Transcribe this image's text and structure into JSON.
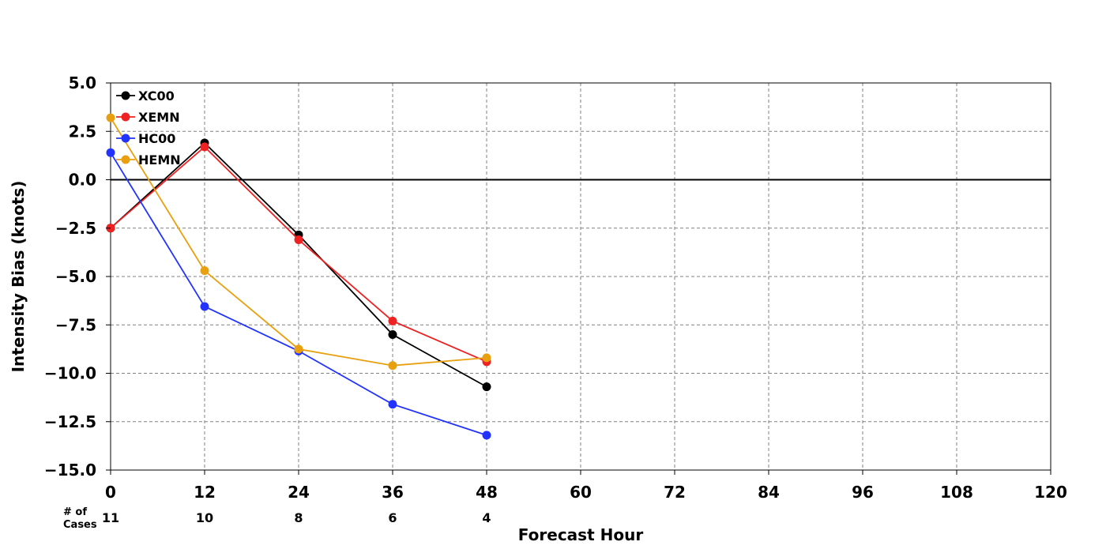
{
  "chart_data": {
    "type": "line",
    "xlabel": "Forecast Hour",
    "ylabel": "Intensity Bias (knots)",
    "xlim": [
      0,
      120
    ],
    "ylim": [
      -15,
      5
    ],
    "x_ticks": [
      "0",
      "12",
      "24",
      "36",
      "48",
      "60",
      "72",
      "84",
      "96",
      "108",
      "120"
    ],
    "y_ticks": [
      "5.0",
      "2.5",
      "0.0",
      "−2.5",
      "−5.0",
      "−7.5",
      "−10.0",
      "−12.5",
      "−15.0"
    ],
    "grid": true,
    "legend_position": "top-left",
    "zero_line": true,
    "cases_header": [
      "# of",
      "Cases"
    ],
    "cases": [
      {
        "x": 0,
        "count": "11"
      },
      {
        "x": 12,
        "count": "10"
      },
      {
        "x": 24,
        "count": "8"
      },
      {
        "x": 36,
        "count": "6"
      },
      {
        "x": 48,
        "count": "4"
      }
    ],
    "x": [
      0,
      12,
      24,
      36,
      48
    ],
    "series": [
      {
        "name": "XC00",
        "color": "#000000",
        "values": [
          -2.5,
          1.9,
          -2.85,
          -8.0,
          -10.7
        ]
      },
      {
        "name": "XEMN",
        "color": "#ee2222",
        "values": [
          -2.5,
          1.7,
          -3.1,
          -7.3,
          -9.4
        ]
      },
      {
        "name": "HC00",
        "color": "#2233ff",
        "values": [
          1.4,
          -6.55,
          -8.85,
          -11.6,
          -13.2
        ]
      },
      {
        "name": "HEMN",
        "color": "#e8a010",
        "values": [
          3.2,
          -4.7,
          -8.75,
          -9.6,
          -9.2
        ]
      }
    ]
  }
}
